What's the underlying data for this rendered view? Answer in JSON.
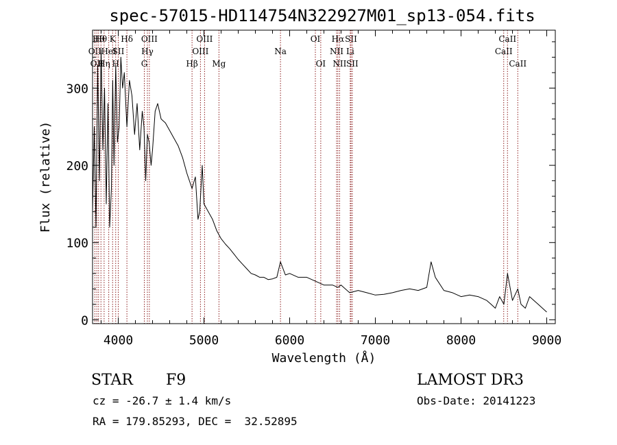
{
  "chart_data": {
    "type": "line",
    "title": "spec-57015-HD114754N322927M01_sp13-054.fits",
    "xlabel": "Wavelength (Å)",
    "ylabel": "Flux (relative)",
    "xlim": [
      3700,
      9100
    ],
    "ylim": [
      -5,
      375
    ],
    "xticks": [
      4000,
      5000,
      6000,
      7000,
      8000,
      9000
    ],
    "yticks": [
      0,
      100,
      200,
      300
    ],
    "grid": false,
    "line_color": "#000000",
    "marker_color": "#8b1a1a",
    "series": [
      {
        "x": [
          3700,
          3720,
          3740,
          3760,
          3780,
          3800,
          3820,
          3840,
          3860,
          3880,
          3900,
          3920,
          3935,
          3950,
          3970,
          3990,
          4010,
          4030,
          4050,
          4070,
          4101,
          4130,
          4160,
          4190,
          4220,
          4250,
          4280,
          4300,
          4320,
          4340,
          4360,
          4383,
          4400,
          4430,
          4460,
          4500,
          4550,
          4600,
          4650,
          4700,
          4750,
          4800,
          4861,
          4900,
          4930,
          4950,
          4980,
          5000,
          5050,
          5100,
          5150,
          5200,
          5250,
          5300,
          5350,
          5400,
          5450,
          5500,
          5550,
          5600,
          5650,
          5700,
          5750,
          5800,
          5850,
          5893,
          5950,
          6000,
          6100,
          6200,
          6300,
          6400,
          6500,
          6563,
          6600,
          6700,
          6800,
          6900,
          7000,
          7100,
          7200,
          7300,
          7400,
          7500,
          7600,
          7650,
          7700,
          7800,
          7900,
          8000,
          8100,
          8200,
          8300,
          8350,
          8400,
          8450,
          8500,
          8542,
          8600,
          8662,
          8700,
          8750,
          8800,
          8850,
          8900,
          8950,
          9000
        ],
        "y": [
          140,
          250,
          120,
          330,
          180,
          350,
          220,
          300,
          150,
          280,
          120,
          170,
          310,
          200,
          330,
          230,
          250,
          340,
          300,
          320,
          250,
          310,
          290,
          240,
          280,
          220,
          270,
          250,
          180,
          240,
          230,
          200,
          220,
          270,
          280,
          260,
          255,
          245,
          235,
          225,
          210,
          190,
          170,
          185,
          130,
          140,
          200,
          150,
          140,
          130,
          115,
          105,
          98,
          92,
          85,
          78,
          72,
          66,
          60,
          58,
          55,
          55,
          52,
          53,
          55,
          75,
          58,
          60,
          55,
          55,
          50,
          45,
          45,
          42,
          45,
          35,
          38,
          35,
          32,
          33,
          35,
          38,
          40,
          38,
          42,
          75,
          55,
          38,
          35,
          30,
          32,
          30,
          25,
          20,
          15,
          30,
          20,
          60,
          25,
          40,
          20,
          15,
          30,
          25,
          20,
          15,
          10
        ]
      }
    ],
    "line_markers": [
      {
        "wavelength": 3727,
        "label": "OII",
        "row": 1
      },
      {
        "wavelength": 3750,
        "label": "OII",
        "row": 2
      },
      {
        "wavelength": 3770,
        "label": "Hθ",
        "row": 0
      },
      {
        "wavelength": 3798,
        "label": "Hθ",
        "row": 0
      },
      {
        "wavelength": 3835,
        "label": "Hη",
        "row": 2
      },
      {
        "wavelength": 3889,
        "label": "HeI",
        "row": 1
      },
      {
        "wavelength": 3934,
        "label": "K",
        "row": 0
      },
      {
        "wavelength": 3970,
        "label": "H",
        "row": 2
      },
      {
        "wavelength": 4000,
        "label": "SII",
        "row": 1
      },
      {
        "wavelength": 4101,
        "label": "Hδ",
        "row": 0
      },
      {
        "wavelength": 4304,
        "label": "G",
        "row": 2
      },
      {
        "wavelength": 4340,
        "label": "Hγ",
        "row": 1
      },
      {
        "wavelength": 4363,
        "label": "OIII",
        "row": 0
      },
      {
        "wavelength": 4861,
        "label": "Hβ",
        "row": 2
      },
      {
        "wavelength": 4959,
        "label": "OIII",
        "row": 1
      },
      {
        "wavelength": 5007,
        "label": "OIII",
        "row": 0
      },
      {
        "wavelength": 5175,
        "label": "Mg",
        "row": 2
      },
      {
        "wavelength": 5893,
        "label": "Na",
        "row": 1
      },
      {
        "wavelength": 6300,
        "label": "OI",
        "row": 0
      },
      {
        "wavelength": 6363,
        "label": "OI",
        "row": 2
      },
      {
        "wavelength": 6548,
        "label": "NII",
        "row": 1
      },
      {
        "wavelength": 6563,
        "label": "Hα",
        "row": 0
      },
      {
        "wavelength": 6583,
        "label": "NII",
        "row": 2
      },
      {
        "wavelength": 6707,
        "label": "Li",
        "row": 1
      },
      {
        "wavelength": 6716,
        "label": "SII",
        "row": 0
      },
      {
        "wavelength": 6731,
        "label": "SII",
        "row": 2
      },
      {
        "wavelength": 8498,
        "label": "CaII",
        "row": 1
      },
      {
        "wavelength": 8542,
        "label": "CaII",
        "row": 0
      },
      {
        "wavelength": 8662,
        "label": "CaII",
        "row": 2
      }
    ]
  },
  "info": {
    "class": "STAR",
    "subclass": "F9",
    "survey": "LAMOST DR3",
    "cz": "cz = -26.7 ± 1.4 km/s",
    "obs_date": "Obs-Date: 20141223",
    "coords": "RA = 179.85293, DEC =  32.52895"
  }
}
